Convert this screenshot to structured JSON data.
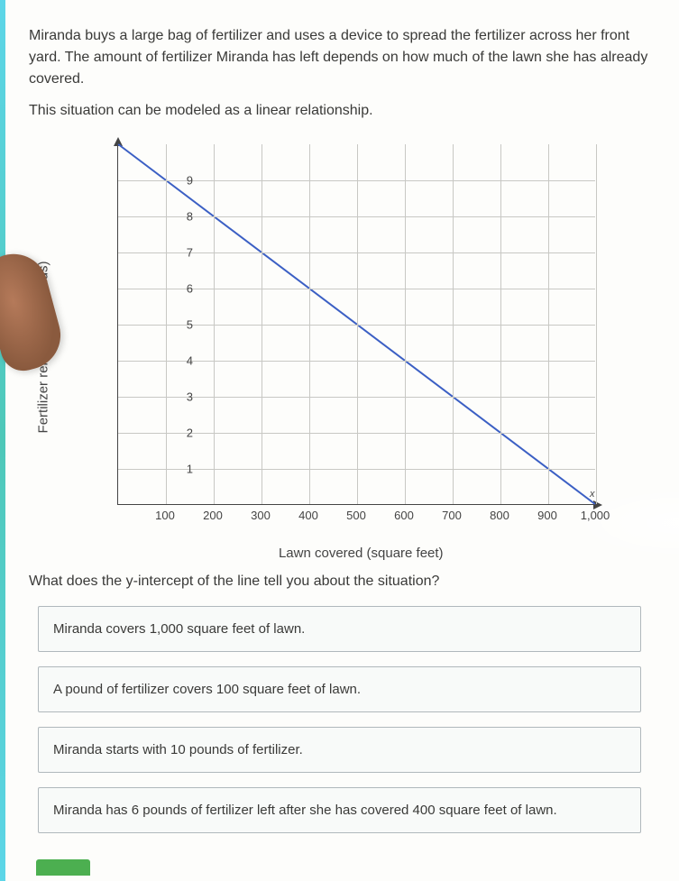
{
  "problem": {
    "paragraph": "Miranda buys a large bag of fertilizer and uses a device to spread the fertilizer across her front yard. The amount of fertilizer Miranda has left depends on how much of the lawn she has already covered.",
    "subtext": "This situation can be modeled as a linear relationship."
  },
  "chart": {
    "type": "line",
    "xlabel": "Lawn covered (square feet)",
    "ylabel": "Fertilizer remaining (pounds)",
    "xlim": [
      0,
      1000
    ],
    "ylim": [
      0,
      10
    ],
    "xtick_step": 100,
    "ytick_step": 1,
    "xticks": [
      "100",
      "200",
      "300",
      "400",
      "500",
      "600",
      "700",
      "800",
      "900",
      "1,000"
    ],
    "xtick_values": [
      100,
      200,
      300,
      400,
      500,
      600,
      700,
      800,
      900,
      1000
    ],
    "yticks": [
      "1",
      "2",
      "3",
      "4",
      "5",
      "6",
      "7",
      "8",
      "9"
    ],
    "ytick_values": [
      1,
      2,
      3,
      4,
      5,
      6,
      7,
      8,
      9
    ],
    "line_points": [
      [
        0,
        10
      ],
      [
        1000,
        0
      ]
    ],
    "line_color": "#3b5fc4",
    "line_width": 2,
    "grid_color": "#c8c8c4",
    "axis_color": "#444444",
    "background": "#fdfdfb",
    "x_end_marker": "x"
  },
  "question": "What does the y-intercept of the line tell you about the situation?",
  "options": [
    "Miranda covers 1,000 square feet of lawn.",
    "A pound of fertilizer covers 100 square feet of lawn.",
    "Miranda starts with 10 pounds of fertilizer.",
    "Miranda has 6 pounds of fertilizer left after she has covered 400 square feet of lawn."
  ]
}
